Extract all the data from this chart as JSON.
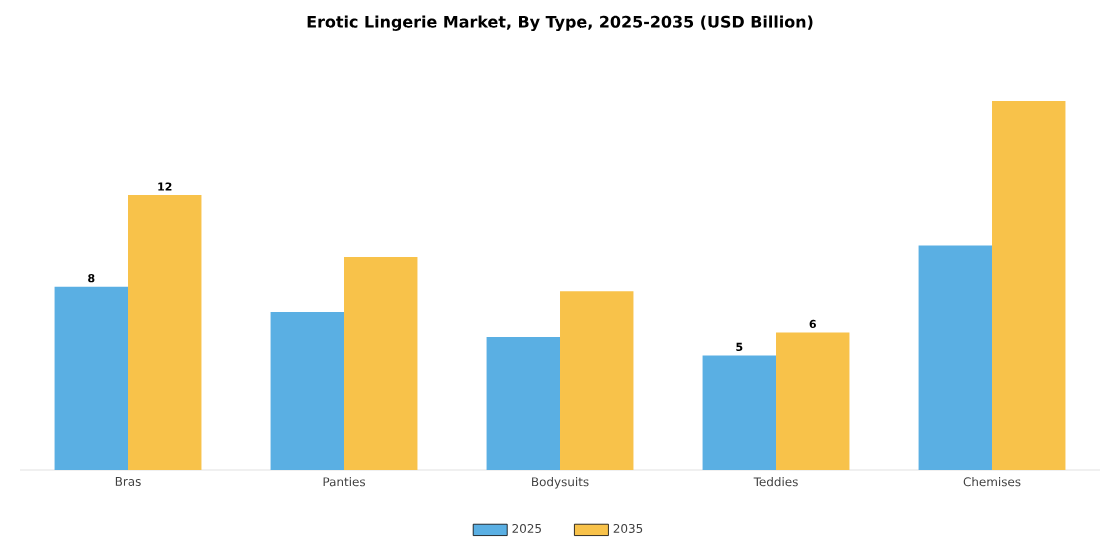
{
  "chart_data": {
    "type": "bar",
    "title": "Erotic Lingerie Market, By Type, 2025-2035 (USD Billion)",
    "categories": [
      "Bras",
      "Panties",
      "Bodysuits",
      "Teddies",
      "Chemises"
    ],
    "series": [
      {
        "name": "2025",
        "color": "#5aafe3",
        "values": [
          8,
          6.9,
          5.8,
          5,
          9.8
        ],
        "value_labels": [
          "8",
          null,
          null,
          "5",
          null
        ]
      },
      {
        "name": "2035",
        "color": "#f8c24a",
        "values": [
          12,
          9.3,
          7.8,
          6,
          16.1
        ],
        "value_labels": [
          "12",
          null,
          null,
          "6",
          null
        ]
      }
    ],
    "legend": "bottom"
  }
}
